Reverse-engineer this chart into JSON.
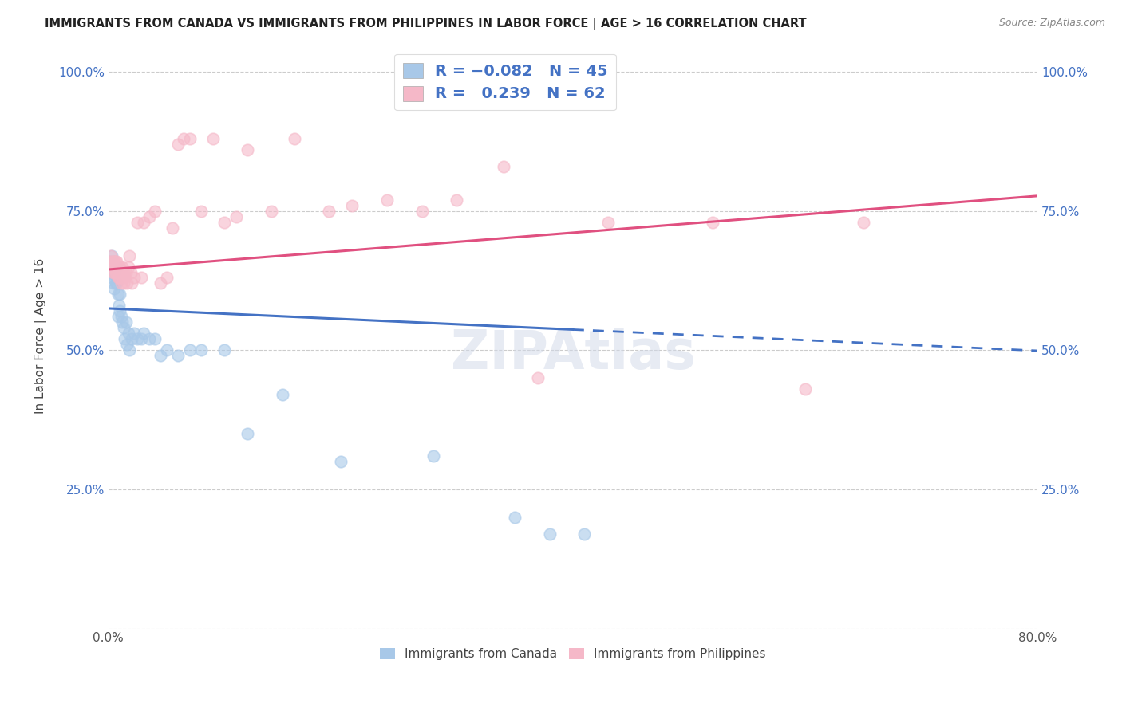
{
  "title": "IMMIGRANTS FROM CANADA VS IMMIGRANTS FROM PHILIPPINES IN LABOR FORCE | AGE > 16 CORRELATION CHART",
  "source": "Source: ZipAtlas.com",
  "ylabel": "In Labor Force | Age > 16",
  "xlim": [
    0.0,
    0.8
  ],
  "ylim": [
    0.0,
    1.05
  ],
  "canada_R": -0.082,
  "canada_N": 45,
  "philippines_R": 0.239,
  "philippines_N": 62,
  "canada_color": "#A8C8E8",
  "philippines_color": "#F5B8C8",
  "canada_line_color": "#4472C4",
  "philippines_line_color": "#E05080",
  "canada_line_solid_end": 0.4,
  "legend_label_canada": "Immigrants from Canada",
  "legend_label_philippines": "Immigrants from Philippines",
  "canada_line_intercept": 0.575,
  "canada_line_slope": -0.095,
  "philippines_line_intercept": 0.645,
  "philippines_line_slope": 0.165,
  "canada_x": [
    0.001,
    0.002,
    0.003,
    0.003,
    0.004,
    0.004,
    0.005,
    0.005,
    0.006,
    0.006,
    0.007,
    0.007,
    0.008,
    0.008,
    0.009,
    0.01,
    0.01,
    0.011,
    0.012,
    0.013,
    0.014,
    0.015,
    0.016,
    0.017,
    0.018,
    0.02,
    0.022,
    0.025,
    0.028,
    0.03,
    0.035,
    0.04,
    0.045,
    0.05,
    0.06,
    0.07,
    0.08,
    0.1,
    0.12,
    0.15,
    0.2,
    0.28,
    0.35,
    0.38,
    0.41
  ],
  "canada_y": [
    0.66,
    0.64,
    0.63,
    0.67,
    0.65,
    0.62,
    0.64,
    0.61,
    0.65,
    0.62,
    0.65,
    0.62,
    0.56,
    0.6,
    0.58,
    0.6,
    0.57,
    0.56,
    0.55,
    0.54,
    0.52,
    0.55,
    0.51,
    0.53,
    0.5,
    0.52,
    0.53,
    0.52,
    0.52,
    0.53,
    0.52,
    0.52,
    0.49,
    0.5,
    0.49,
    0.5,
    0.5,
    0.5,
    0.35,
    0.42,
    0.3,
    0.31,
    0.2,
    0.17,
    0.17
  ],
  "philippines_x": [
    0.001,
    0.002,
    0.002,
    0.003,
    0.003,
    0.004,
    0.004,
    0.005,
    0.005,
    0.006,
    0.006,
    0.007,
    0.007,
    0.008,
    0.008,
    0.009,
    0.009,
    0.01,
    0.01,
    0.011,
    0.011,
    0.012,
    0.012,
    0.013,
    0.013,
    0.014,
    0.015,
    0.016,
    0.017,
    0.018,
    0.019,
    0.02,
    0.022,
    0.025,
    0.028,
    0.03,
    0.035,
    0.04,
    0.045,
    0.05,
    0.055,
    0.06,
    0.065,
    0.07,
    0.08,
    0.09,
    0.1,
    0.11,
    0.12,
    0.14,
    0.16,
    0.19,
    0.21,
    0.24,
    0.27,
    0.3,
    0.34,
    0.37,
    0.43,
    0.52,
    0.6,
    0.65
  ],
  "philippines_y": [
    0.66,
    0.65,
    0.67,
    0.65,
    0.66,
    0.66,
    0.64,
    0.66,
    0.64,
    0.66,
    0.64,
    0.66,
    0.64,
    0.65,
    0.63,
    0.65,
    0.63,
    0.65,
    0.63,
    0.64,
    0.62,
    0.65,
    0.63,
    0.64,
    0.62,
    0.63,
    0.64,
    0.62,
    0.65,
    0.67,
    0.64,
    0.62,
    0.63,
    0.73,
    0.63,
    0.73,
    0.74,
    0.75,
    0.62,
    0.63,
    0.72,
    0.87,
    0.88,
    0.88,
    0.75,
    0.88,
    0.73,
    0.74,
    0.86,
    0.75,
    0.88,
    0.75,
    0.76,
    0.77,
    0.75,
    0.77,
    0.83,
    0.45,
    0.73,
    0.73,
    0.43,
    0.73
  ]
}
